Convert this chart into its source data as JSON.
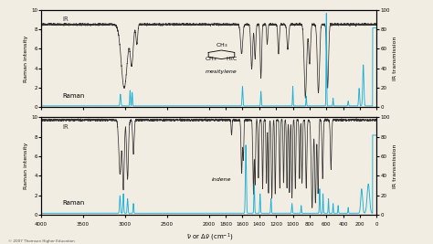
{
  "bg_color": "#f2ede2",
  "ir_color": "#333333",
  "raman_color": "#1ab0d8",
  "panel1_molecule": "mesitylene",
  "panel2_molecule": "indene",
  "copyright": "© 2007 Thomson Higher Education",
  "x_label": "$\\bar{\\nu}$ or $\\Delta\\bar{\\nu}$ (cm$^{-1}$)",
  "yticks_left": [
    0,
    2,
    4,
    6,
    8,
    10
  ],
  "yticks_right": [
    0,
    20,
    40,
    60,
    80,
    100
  ],
  "xticks": [
    4000,
    3500,
    3000,
    2500,
    2000,
    1800,
    1600,
    1400,
    1200,
    1000,
    800,
    600,
    400,
    200,
    0
  ]
}
